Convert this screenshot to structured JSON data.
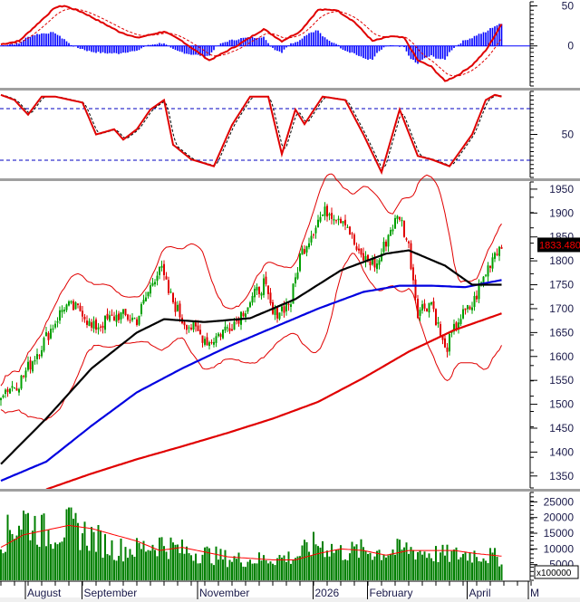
{
  "colors": {
    "up": "#00a000",
    "down": "#e00000",
    "ma_black": "#000000",
    "ma_blue": "#0000e0",
    "ma_red": "#e00000",
    "bb": "#e00000",
    "macd_hist": "#0000ff",
    "volume": "#008000",
    "vol_ma": "#ff0000",
    "price_tag_bg": "#000000",
    "price_tag_fg": "#ff0000"
  },
  "chart_data": [
    {
      "type": "line",
      "name": "MACD panel",
      "ylim": [
        -50,
        55
      ],
      "y_ticks": [
        "50",
        "0"
      ],
      "y_tick_values": [
        50,
        0
      ],
      "macd_keypoints": [
        [
          0,
          2
        ],
        [
          8,
          6
        ],
        [
          24,
          48
        ],
        [
          28,
          50
        ],
        [
          36,
          42
        ],
        [
          52,
          18
        ],
        [
          60,
          10
        ],
        [
          72,
          18
        ],
        [
          80,
          6
        ],
        [
          92,
          -18
        ],
        [
          104,
          0
        ],
        [
          116,
          21
        ],
        [
          124,
          6
        ],
        [
          132,
          18
        ],
        [
          140,
          45
        ],
        [
          148,
          45
        ],
        [
          156,
          30
        ],
        [
          164,
          6
        ],
        [
          172,
          12
        ],
        [
          178,
          10
        ],
        [
          184,
          -18
        ],
        [
          190,
          -26
        ],
        [
          196,
          -44
        ],
        [
          202,
          -36
        ],
        [
          208,
          -24
        ],
        [
          214,
          -6
        ],
        [
          221,
          27
        ]
      ]
    },
    {
      "type": "line",
      "name": "Stochastic panel",
      "ylim": [
        0,
        100
      ],
      "y_ticks": [
        "50"
      ],
      "y_tick_values": [
        50
      ],
      "levels": [
        80,
        20
      ],
      "k_keypoints": [
        [
          0,
          96
        ],
        [
          6,
          90
        ],
        [
          12,
          73
        ],
        [
          18,
          94
        ],
        [
          24,
          94
        ],
        [
          36,
          87
        ],
        [
          42,
          50
        ],
        [
          50,
          56
        ],
        [
          54,
          44
        ],
        [
          60,
          56
        ],
        [
          66,
          79
        ],
        [
          72,
          90
        ],
        [
          76,
          38
        ],
        [
          84,
          21
        ],
        [
          94,
          13
        ],
        [
          102,
          61
        ],
        [
          110,
          94
        ],
        [
          118,
          94
        ],
        [
          124,
          27
        ],
        [
          130,
          79
        ],
        [
          134,
          62
        ],
        [
          142,
          94
        ],
        [
          152,
          90
        ],
        [
          160,
          50
        ],
        [
          168,
          6
        ],
        [
          176,
          79
        ],
        [
          184,
          25
        ],
        [
          190,
          21
        ],
        [
          198,
          13
        ],
        [
          208,
          50
        ],
        [
          214,
          90
        ],
        [
          218,
          96
        ],
        [
          221,
          94
        ]
      ]
    },
    {
      "type": "candlestick",
      "name": "Price panel",
      "ylim": [
        1325,
        1965
      ],
      "y_ticks": [
        "1950",
        "1900",
        "1850",
        "1800",
        "1750",
        "1700",
        "1650",
        "1600",
        "1550",
        "1500",
        "1450",
        "1400",
        "1350"
      ],
      "y_tick_values": [
        1950,
        1900,
        1850,
        1800,
        1750,
        1700,
        1650,
        1600,
        1550,
        1500,
        1450,
        1400,
        1350
      ],
      "last_price": "1833.480",
      "last_price_value": 1833.48,
      "bars": 222,
      "close_keypoints": [
        [
          0,
          1526
        ],
        [
          8,
          1545
        ],
        [
          20,
          1640
        ],
        [
          28,
          1706
        ],
        [
          36,
          1696
        ],
        [
          40,
          1658
        ],
        [
          52,
          1687
        ],
        [
          60,
          1677
        ],
        [
          70,
          1791
        ],
        [
          74,
          1734
        ],
        [
          80,
          1677
        ],
        [
          92,
          1630
        ],
        [
          104,
          1677
        ],
        [
          116,
          1753
        ],
        [
          120,
          1687
        ],
        [
          128,
          1715
        ],
        [
          132,
          1810
        ],
        [
          140,
          1886
        ],
        [
          144,
          1905
        ],
        [
          152,
          1886
        ],
        [
          158,
          1810
        ],
        [
          166,
          1791
        ],
        [
          172,
          1867
        ],
        [
          176,
          1895
        ],
        [
          180,
          1829
        ],
        [
          184,
          1696
        ],
        [
          190,
          1715
        ],
        [
          196,
          1611
        ],
        [
          202,
          1677
        ],
        [
          208,
          1706
        ],
        [
          212,
          1753
        ],
        [
          218,
          1820
        ],
        [
          221,
          1833
        ]
      ],
      "ma50_keypoints": [
        [
          0,
          1375
        ],
        [
          20,
          1470
        ],
        [
          40,
          1575
        ],
        [
          60,
          1650
        ],
        [
          72,
          1678
        ],
        [
          90,
          1672
        ],
        [
          110,
          1680
        ],
        [
          130,
          1720
        ],
        [
          150,
          1780
        ],
        [
          170,
          1815
        ],
        [
          180,
          1822
        ],
        [
          196,
          1790
        ],
        [
          208,
          1750
        ],
        [
          214,
          1750
        ],
        [
          221,
          1750
        ]
      ],
      "ma100_keypoints": [
        [
          0,
          1340
        ],
        [
          20,
          1380
        ],
        [
          40,
          1455
        ],
        [
          60,
          1525
        ],
        [
          80,
          1575
        ],
        [
          100,
          1620
        ],
        [
          120,
          1660
        ],
        [
          140,
          1700
        ],
        [
          160,
          1735
        ],
        [
          176,
          1748
        ],
        [
          190,
          1748
        ],
        [
          205,
          1745
        ],
        [
          221,
          1760
        ]
      ],
      "ma200_keypoints": [
        [
          20,
          1322
        ],
        [
          40,
          1355
        ],
        [
          60,
          1385
        ],
        [
          80,
          1412
        ],
        [
          100,
          1440
        ],
        [
          120,
          1470
        ],
        [
          140,
          1505
        ],
        [
          160,
          1555
        ],
        [
          180,
          1610
        ],
        [
          200,
          1655
        ],
        [
          221,
          1690
        ]
      ]
    },
    {
      "type": "bar",
      "name": "Volume panel",
      "unit": "x100000",
      "ylim": [
        0,
        28000
      ],
      "y_ticks": [
        "25000",
        "20000",
        "15000",
        "10000",
        "5000"
      ],
      "y_tick_values": [
        25000,
        20000,
        15000,
        10000,
        5000
      ],
      "volume_keypoints": [
        [
          0,
          13000
        ],
        [
          10,
          20000
        ],
        [
          20,
          15000
        ],
        [
          30,
          17000
        ],
        [
          40,
          14000
        ],
        [
          50,
          10000
        ],
        [
          60,
          10000
        ],
        [
          70,
          12000
        ],
        [
          80,
          9500
        ],
        [
          90,
          8500
        ],
        [
          100,
          7000
        ],
        [
          110,
          6500
        ],
        [
          120,
          7000
        ],
        [
          130,
          7500
        ],
        [
          140,
          12000
        ],
        [
          150,
          9000
        ],
        [
          160,
          9500
        ],
        [
          170,
          9000
        ],
        [
          180,
          10000
        ],
        [
          190,
          8500
        ],
        [
          200,
          8000
        ],
        [
          210,
          8500
        ],
        [
          221,
          7000
        ]
      ],
      "ma_keypoints": [
        [
          0,
          10500
        ],
        [
          10,
          14500
        ],
        [
          30,
          17500
        ],
        [
          40,
          16500
        ],
        [
          60,
          12500
        ],
        [
          70,
          9500
        ],
        [
          80,
          10500
        ],
        [
          90,
          9000
        ],
        [
          100,
          7500
        ],
        [
          120,
          6500
        ],
        [
          130,
          6500
        ],
        [
          140,
          8500
        ],
        [
          150,
          10000
        ],
        [
          160,
          9500
        ],
        [
          170,
          8000
        ],
        [
          180,
          9500
        ],
        [
          190,
          9500
        ],
        [
          200,
          9500
        ],
        [
          210,
          8500
        ],
        [
          221,
          7700
        ]
      ]
    }
  ],
  "x_axis": {
    "labels": [
      {
        "text": "August",
        "index": 10
      },
      {
        "text": "September",
        "index": 35
      },
      {
        "text": "November",
        "index": 86
      },
      {
        "text": "2026",
        "index": 137
      },
      {
        "text": "February",
        "index": 161
      },
      {
        "text": "April",
        "index": 205
      },
      {
        "text": "M",
        "index": 232
      }
    ]
  }
}
